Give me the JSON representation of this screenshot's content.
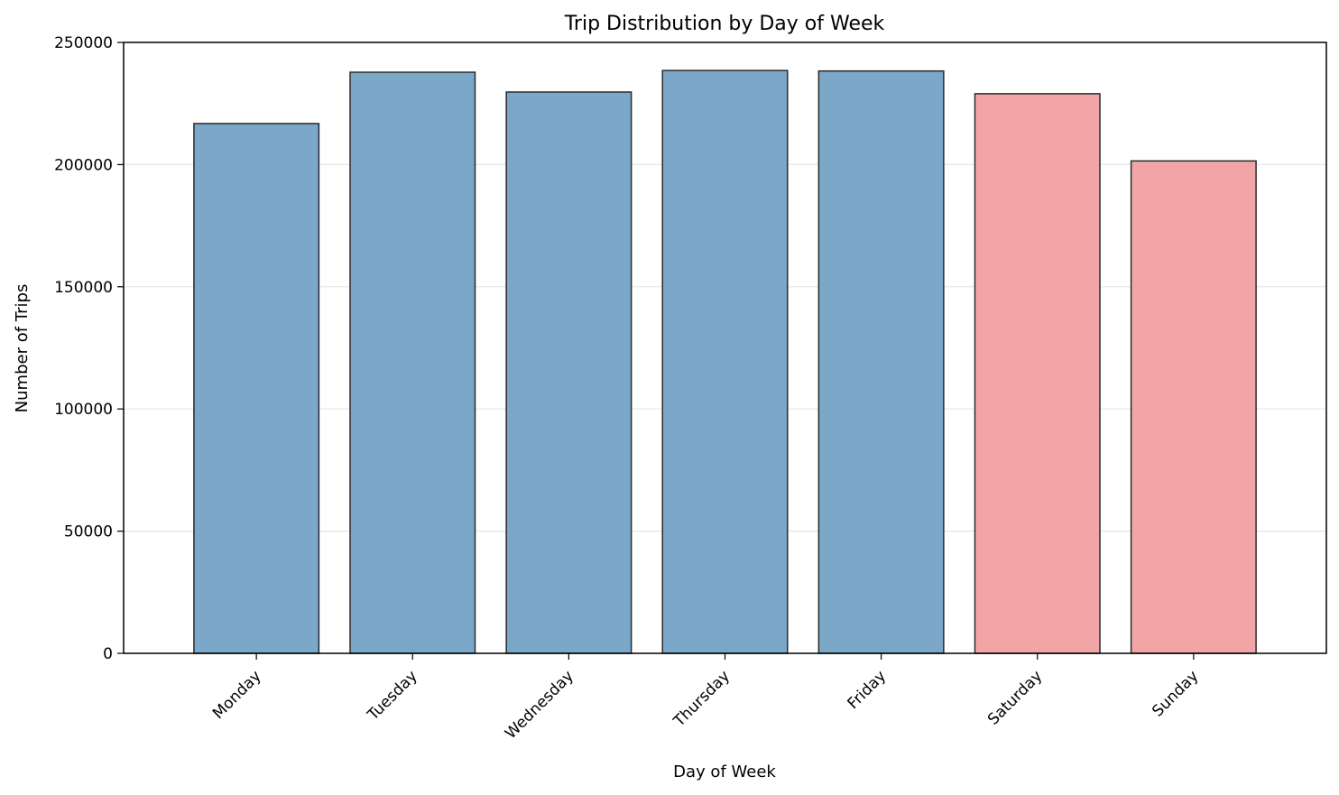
{
  "chart_data": {
    "type": "bar",
    "title": "Trip Distribution by Day of Week",
    "xlabel": "Day of Week",
    "ylabel": "Number of Trips",
    "categories": [
      "Monday",
      "Tuesday",
      "Wednesday",
      "Thursday",
      "Friday",
      "Saturday",
      "Sunday"
    ],
    "values": [
      216800,
      237800,
      229700,
      238500,
      238300,
      229000,
      201500
    ],
    "ylim": [
      0,
      250000
    ],
    "yticks": [
      0,
      50000,
      100000,
      150000,
      200000,
      250000
    ],
    "grid": "y",
    "legend": "none",
    "colors": {
      "weekday": "#7ba7c9",
      "weekend": "#f2a5a6",
      "edge": "#2b2b2b",
      "grid": "#e6e6e6"
    },
    "bar_color_groups": [
      "weekday",
      "weekday",
      "weekday",
      "weekday",
      "weekday",
      "weekend",
      "weekend"
    ]
  }
}
